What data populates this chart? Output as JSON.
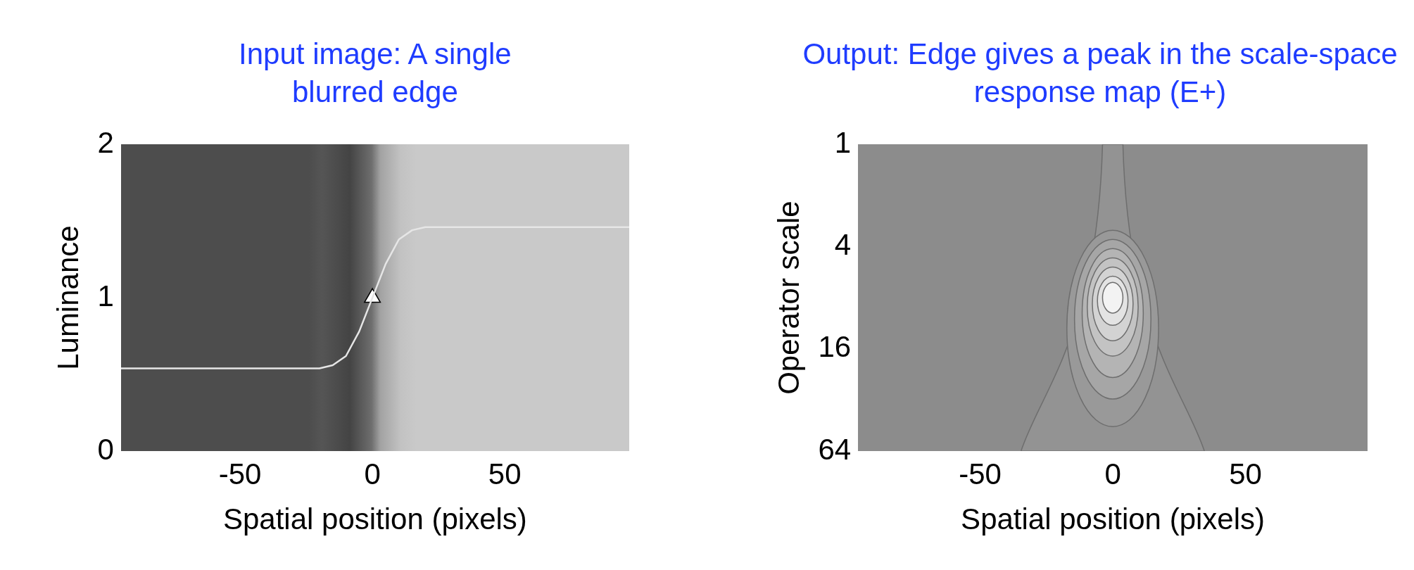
{
  "chart_data": [
    {
      "type": "line",
      "title": "Input image: A single blurred edge",
      "xlabel": "Spatial position (pixels)",
      "ylabel": "Luminance",
      "xlim": [
        -95,
        97
      ],
      "ylim": [
        0,
        2
      ],
      "xticks": [
        -50,
        0,
        50
      ],
      "yticks": [
        0,
        1,
        2
      ],
      "grid": false,
      "legend": false,
      "marker": "none",
      "series": [
        {
          "color": "#e6e6e6",
          "x": [
            -95,
            -20,
            -15,
            -10,
            -5,
            0,
            5,
            10,
            15,
            20,
            97
          ],
          "values": [
            0.54,
            0.54,
            0.56,
            0.62,
            0.78,
            1.0,
            1.22,
            1.38,
            1.44,
            1.46,
            1.46
          ]
        },
        {
          "type": "scatter",
          "marker": "triangle",
          "color": "#ffffff",
          "x": [
            0
          ],
          "values": [
            1
          ]
        }
      ]
    },
    {
      "type": "other",
      "title": "Output: Edge gives a peak in the scale-space response map (E+)",
      "xlabel": "Spatial position (pixels)",
      "ylabel": "Operator scale",
      "categories": [
        "-50",
        "0",
        "50"
      ],
      "y_categories": [
        "1",
        "4",
        "16",
        "64"
      ],
      "legend": false
    }
  ]
}
